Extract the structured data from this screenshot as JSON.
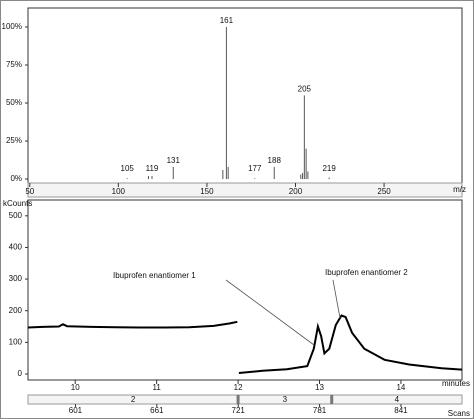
{
  "chart_data": [
    {
      "type": "spectrum",
      "x_label": "m/z",
      "x": [
        105,
        119,
        131,
        161,
        177,
        188,
        205,
        219
      ],
      "values": [
        0.5,
        2,
        8,
        100,
        0.5,
        8,
        55,
        1
      ],
      "minor_x": [
        117,
        159,
        162,
        203,
        204,
        206,
        207
      ],
      "minor_values": [
        2,
        6,
        8,
        3,
        4,
        20,
        5
      ],
      "color": "#555555",
      "xlim": [
        49,
        294
      ],
      "xticks": [
        50,
        100,
        150,
        200,
        250
      ],
      "ylim": [
        -2.6,
        112.5
      ],
      "yticks": [
        {
          "value": 0,
          "label": "0%"
        },
        {
          "value": 25,
          "label": "25%"
        },
        {
          "value": 50,
          "label": "50%"
        },
        {
          "value": 75,
          "label": "75%"
        },
        {
          "value": 100,
          "label": "100%"
        }
      ]
    },
    {
      "type": "line",
      "y_label": "kCounts",
      "x_label": "minutes",
      "x2_label": "Scans",
      "x": [
        9.42,
        9.6,
        9.8,
        9.85,
        9.9,
        10.2,
        10.5,
        10.8,
        11.1,
        11.4,
        11.7,
        11.9,
        11.99,
        12.0,
        12.01,
        12.3,
        12.6,
        12.85,
        12.93,
        12.98,
        13.02,
        13.06,
        13.12,
        13.2,
        13.27,
        13.32,
        13.4,
        13.55,
        13.8,
        14.1,
        14.5,
        14.75
      ],
      "values": [
        147,
        149,
        150,
        157,
        151,
        149,
        148,
        147,
        147,
        148,
        152,
        160,
        165,
        null,
        3,
        10,
        15,
        25,
        80,
        150,
        120,
        65,
        80,
        155,
        185,
        180,
        130,
        80,
        45,
        30,
        18,
        14
      ],
      "color": "#000000",
      "xlim": [
        9.42,
        14.75
      ],
      "xticks": [
        10,
        11,
        12,
        13,
        14
      ],
      "ylim": [
        -19,
        550
      ],
      "yticks": [
        0,
        100,
        200,
        300,
        400,
        500
      ],
      "x2lim": [
        566,
        886
      ],
      "x2ticks": [
        601,
        661,
        721,
        781,
        841
      ],
      "segment_labels": [
        "2",
        "3",
        "4"
      ],
      "segment_boundaries": [
        12,
        13.15
      ],
      "annotations": [
        "Ibuprofen enantiomer 1",
        "Ibuprofen enantiomer 2"
      ]
    }
  ]
}
